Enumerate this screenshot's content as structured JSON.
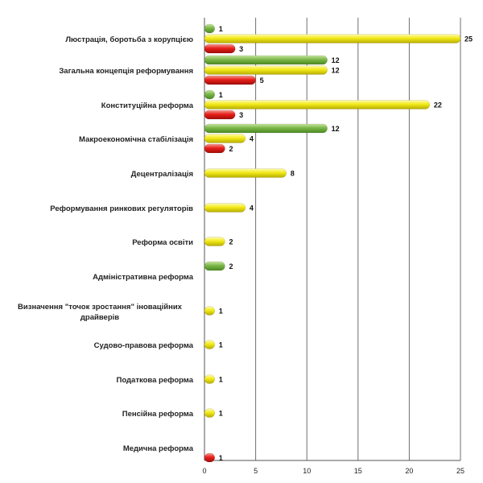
{
  "chart_data": {
    "type": "bar",
    "orientation": "horizontal",
    "categories": [
      "Люстрація, боротьба з корупцією",
      "Загальна концепція реформування",
      "Конституційна реформа",
      "Макроекономічна стабілізація",
      "Децентралізація",
      "Реформування ринкових регуляторів",
      "Реформа освіти",
      "Адміністративна реформа",
      "Визначення \"точок зростання\"   іноваційних драйверів",
      "Судово-правова реформа",
      "Податкова реформа",
      "Пенсійна реформа",
      "Медична реформа"
    ],
    "series": [
      {
        "color": "#7ab648",
        "values": [
          1,
          12,
          1,
          12,
          null,
          null,
          null,
          2,
          null,
          null,
          null,
          null,
          null
        ]
      },
      {
        "color": "#f2ea1a",
        "values": [
          25,
          12,
          22,
          4,
          8,
          4,
          2,
          null,
          1,
          1,
          1,
          1,
          null
        ]
      },
      {
        "color": "#e8201c",
        "values": [
          3,
          5,
          3,
          2,
          null,
          null,
          null,
          null,
          null,
          null,
          null,
          null,
          1
        ]
      }
    ],
    "xlim": [
      0,
      25
    ],
    "xticks": [
      0,
      5,
      10,
      15,
      20,
      25
    ],
    "grid": true,
    "title": "",
    "xlabel": "",
    "ylabel": ""
  }
}
